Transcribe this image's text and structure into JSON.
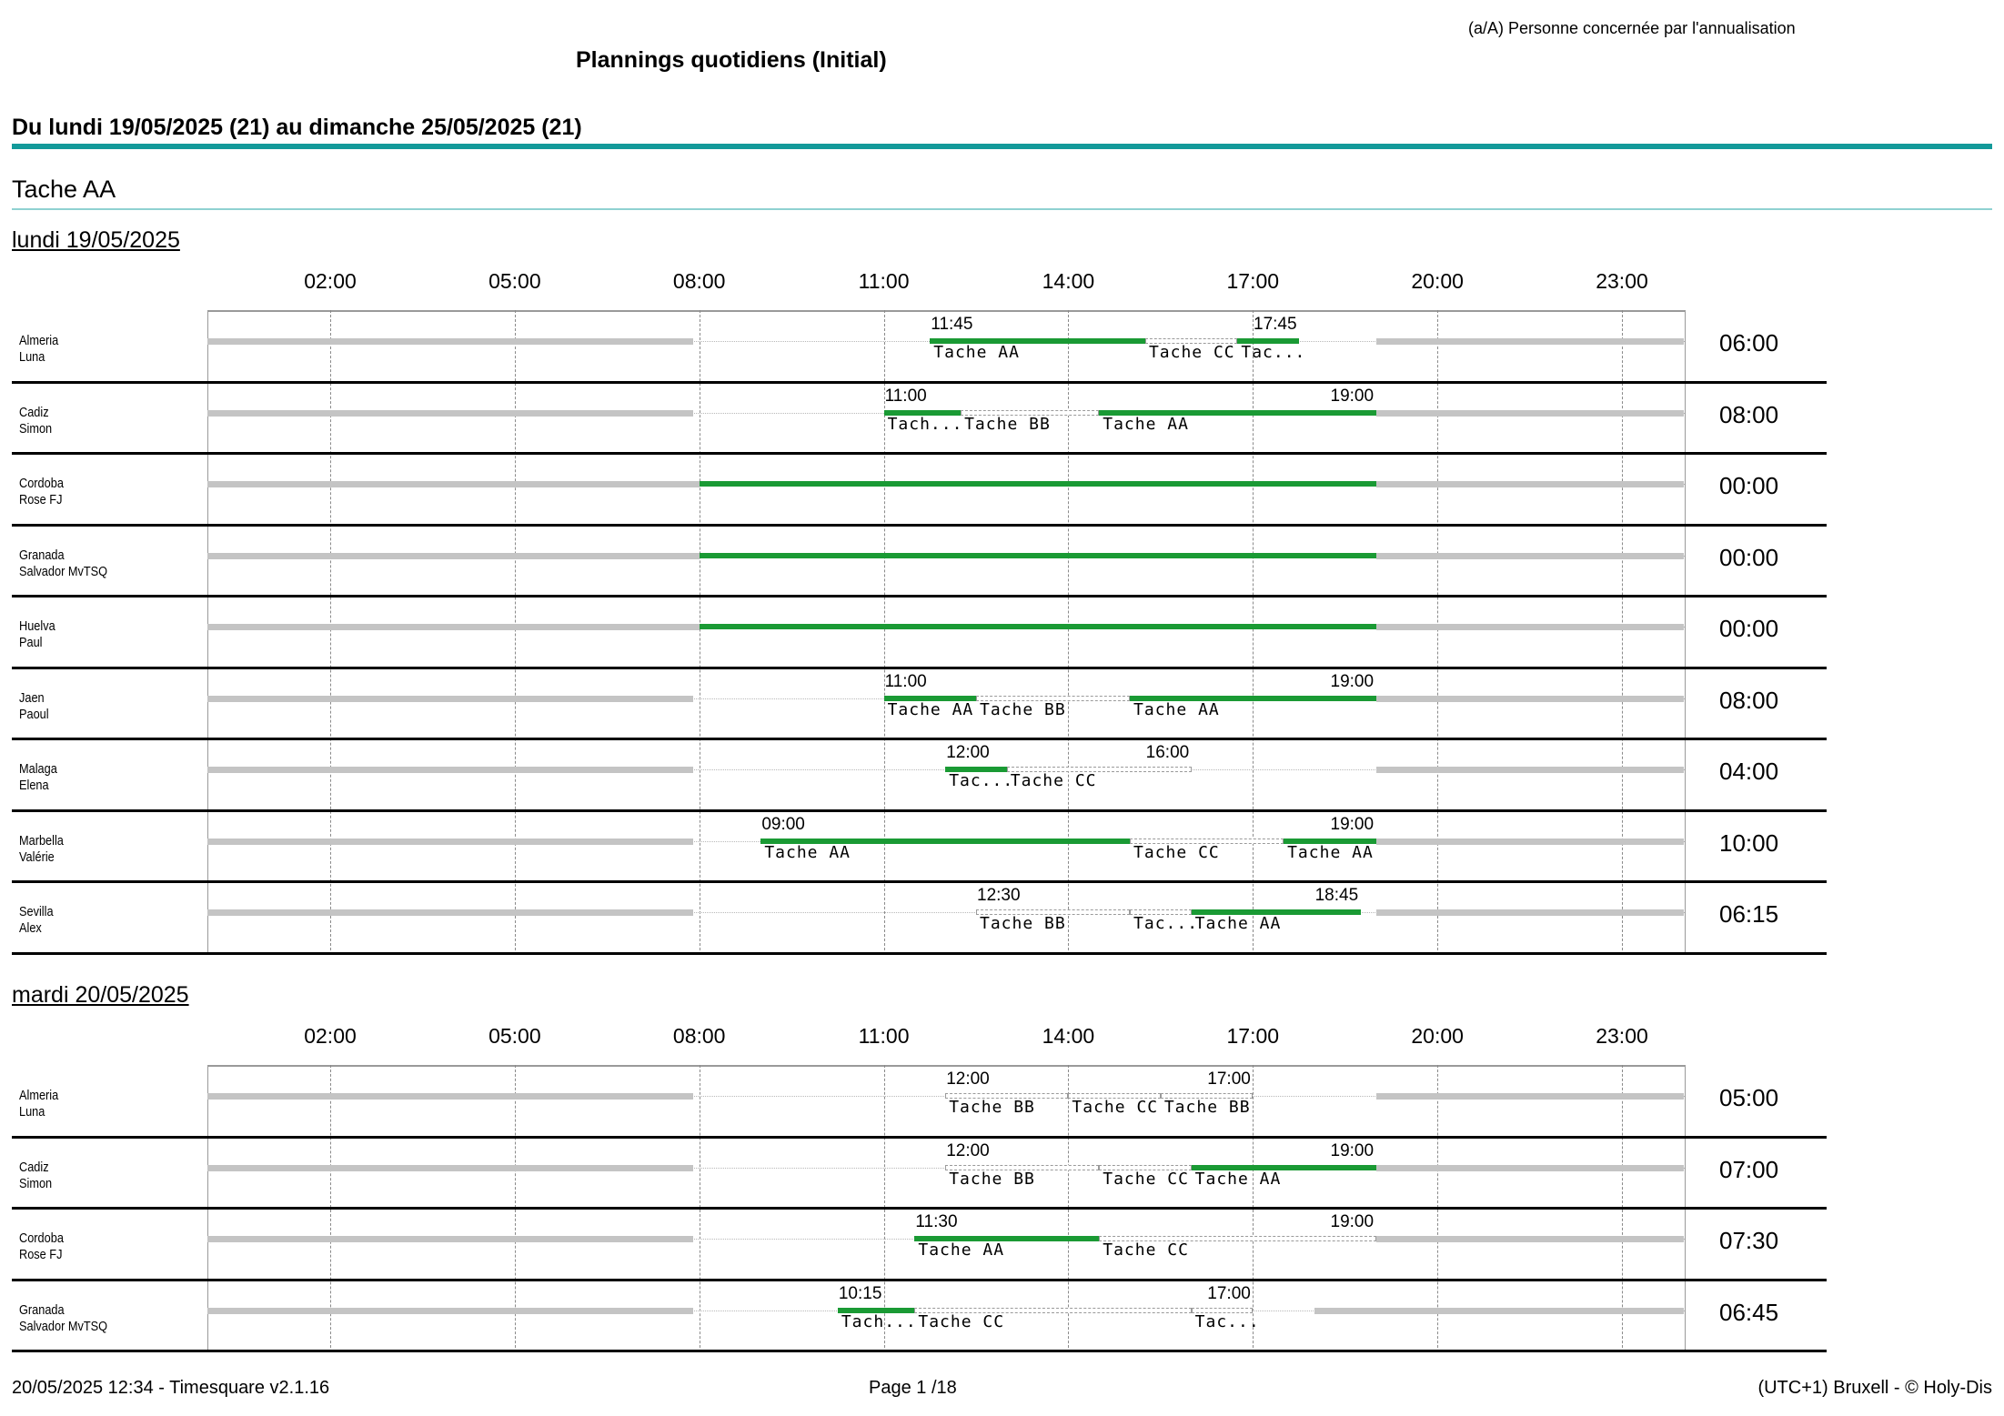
{
  "legend": "(a/A) Personne concernée par l'annualisation",
  "title": "Plannings quotidiens (Initial)",
  "period": "Du lundi 19/05/2025 (21) au dimanche 25/05/2025 (21)",
  "task": "Tache AA",
  "hours": [
    "02:00",
    "05:00",
    "08:00",
    "11:00",
    "14:00",
    "17:00",
    "20:00",
    "23:00"
  ],
  "colors": {
    "accent": "#139a9a",
    "scheduled": "#1a9a34",
    "idle": "#c4c4c4"
  },
  "days": [
    {
      "title": "lundi 19/05/2025",
      "rows": [
        {
          "name1": "Almeria",
          "name2": "Luna",
          "start": "11:45",
          "end": "17:45",
          "total": "06:00",
          "segments": [
            {
              "from": 11.75,
              "to": 15.25,
              "kind": "work",
              "label": "Tache AA"
            },
            {
              "from": 15.25,
              "to": 16.75,
              "kind": "task",
              "label": "Tache CC"
            },
            {
              "from": 16.75,
              "to": 17.75,
              "kind": "work",
              "label": "Tac..."
            }
          ],
          "avail": [
            [
              -1,
              7.9
            ],
            [
              19.0,
              24.0
            ]
          ]
        },
        {
          "name1": "Cadiz",
          "name2": "Simon",
          "start": "11:00",
          "end": "19:00",
          "total": "08:00",
          "segments": [
            {
              "from": 11.0,
              "to": 12.25,
              "kind": "work",
              "label": "Tach..."
            },
            {
              "from": 12.25,
              "to": 14.5,
              "kind": "task",
              "label": "Tache BB"
            },
            {
              "from": 14.5,
              "to": 19.0,
              "kind": "work",
              "label": "Tache AA"
            }
          ],
          "avail": [
            [
              -1,
              7.9
            ],
            [
              19.0,
              24.0
            ]
          ]
        },
        {
          "name1": "Cordoba",
          "name2": "Rose FJ",
          "start": "",
          "end": "",
          "total": "00:00",
          "segments": [
            {
              "from": 8.0,
              "to": 19.0,
              "kind": "work",
              "label": ""
            }
          ],
          "avail": [
            [
              -1,
              8.0
            ],
            [
              19.0,
              24.0
            ]
          ]
        },
        {
          "name1": "Granada",
          "name2": "Salvador MvTSQ",
          "start": "",
          "end": "",
          "total": "00:00",
          "segments": [
            {
              "from": 8.0,
              "to": 19.0,
              "kind": "work",
              "label": ""
            }
          ],
          "avail": [
            [
              -1,
              8.0
            ],
            [
              19.0,
              24.0
            ]
          ]
        },
        {
          "name1": "Huelva",
          "name2": "Paul",
          "start": "",
          "end": "",
          "total": "00:00",
          "segments": [
            {
              "from": 8.0,
              "to": 19.0,
              "kind": "work",
              "label": ""
            }
          ],
          "avail": [
            [
              -1,
              8.0
            ],
            [
              19.0,
              24.0
            ]
          ]
        },
        {
          "name1": "Jaen",
          "name2": "Paoul",
          "start": "11:00",
          "end": "19:00",
          "total": "08:00",
          "segments": [
            {
              "from": 11.0,
              "to": 12.5,
              "kind": "work",
              "label": "Tache AA"
            },
            {
              "from": 12.5,
              "to": 15.0,
              "kind": "task",
              "label": "Tache BB"
            },
            {
              "from": 15.0,
              "to": 19.0,
              "kind": "work",
              "label": "Tache AA"
            }
          ],
          "avail": [
            [
              -1,
              7.9
            ],
            [
              19.0,
              24.0
            ]
          ]
        },
        {
          "name1": "Malaga",
          "name2": "Elena",
          "start": "12:00",
          "end": "16:00",
          "total": "04:00",
          "segments": [
            {
              "from": 12.0,
              "to": 13.0,
              "kind": "work",
              "label": "Tac..."
            },
            {
              "from": 13.0,
              "to": 16.0,
              "kind": "task",
              "label": "Tache CC"
            }
          ],
          "avail": [
            [
              -1,
              7.9
            ],
            [
              19.0,
              24.0
            ]
          ]
        },
        {
          "name1": "Marbella",
          "name2": "Valérie",
          "start": "09:00",
          "end": "19:00",
          "total": "10:00",
          "segments": [
            {
              "from": 9.0,
              "to": 15.0,
              "kind": "work",
              "label": "Tache AA"
            },
            {
              "from": 15.0,
              "to": 17.5,
              "kind": "task",
              "label": "Tache CC"
            },
            {
              "from": 17.5,
              "to": 19.0,
              "kind": "work",
              "label": "Tache AA"
            }
          ],
          "avail": [
            [
              -1,
              7.9
            ],
            [
              19.0,
              24.0
            ]
          ]
        },
        {
          "name1": "Sevilla",
          "name2": "Alex",
          "start": "12:30",
          "end": "18:45",
          "total": "06:15",
          "segments": [
            {
              "from": 12.5,
              "to": 15.0,
              "kind": "task",
              "label": "Tache BB"
            },
            {
              "from": 15.0,
              "to": 16.0,
              "kind": "task",
              "label": "Tac..."
            },
            {
              "from": 16.0,
              "to": 18.75,
              "kind": "work",
              "label": "Tache AA"
            }
          ],
          "avail": [
            [
              -1,
              7.9
            ],
            [
              19.0,
              24.0
            ]
          ]
        }
      ]
    },
    {
      "title": "mardi 20/05/2025",
      "rows": [
        {
          "name1": "Almeria",
          "name2": "Luna",
          "start": "12:00",
          "end": "17:00",
          "total": "05:00",
          "segments": [
            {
              "from": 12.0,
              "to": 14.0,
              "kind": "task",
              "label": "Tache BB"
            },
            {
              "from": 14.0,
              "to": 15.5,
              "kind": "task",
              "label": "Tache CC"
            },
            {
              "from": 15.5,
              "to": 17.0,
              "kind": "task",
              "label": "Tache BB"
            }
          ],
          "avail": [
            [
              -1,
              7.9
            ],
            [
              19.0,
              24.0
            ]
          ]
        },
        {
          "name1": "Cadiz",
          "name2": "Simon",
          "start": "12:00",
          "end": "19:00",
          "total": "07:00",
          "segments": [
            {
              "from": 12.0,
              "to": 14.5,
              "kind": "task",
              "label": "Tache BB"
            },
            {
              "from": 14.5,
              "to": 16.0,
              "kind": "task",
              "label": "Tache CC"
            },
            {
              "from": 16.0,
              "to": 19.0,
              "kind": "work",
              "label": "Tache AA"
            }
          ],
          "avail": [
            [
              -1,
              7.9
            ],
            [
              19.0,
              24.0
            ]
          ]
        },
        {
          "name1": "Cordoba",
          "name2": "Rose FJ",
          "start": "11:30",
          "end": "19:00",
          "total": "07:30",
          "segments": [
            {
              "from": 11.5,
              "to": 14.5,
              "kind": "work",
              "label": "Tache AA"
            },
            {
              "from": 14.5,
              "to": 19.0,
              "kind": "task",
              "label": "Tache CC"
            }
          ],
          "avail": [
            [
              -1,
              7.9
            ],
            [
              19.0,
              24.0
            ]
          ]
        },
        {
          "name1": "Granada",
          "name2": "Salvador MvTSQ",
          "start": "10:15",
          "end": "17:00",
          "total": "06:45",
          "segments": [
            {
              "from": 10.25,
              "to": 11.5,
              "kind": "work",
              "label": "Tach..."
            },
            {
              "from": 11.5,
              "to": 16.0,
              "kind": "task",
              "label": "Tache CC"
            },
            {
              "from": 16.0,
              "to": 17.0,
              "kind": "task",
              "label": "Tac..."
            }
          ],
          "avail": [
            [
              -1,
              7.9
            ],
            [
              18.0,
              24.0
            ]
          ]
        }
      ]
    }
  ],
  "footer": {
    "left": "20/05/2025 12:34 - Timesquare v2.1.16",
    "center": "Page 1 /18",
    "right": "(UTC+1) Bruxell - © Holy-Dis"
  }
}
